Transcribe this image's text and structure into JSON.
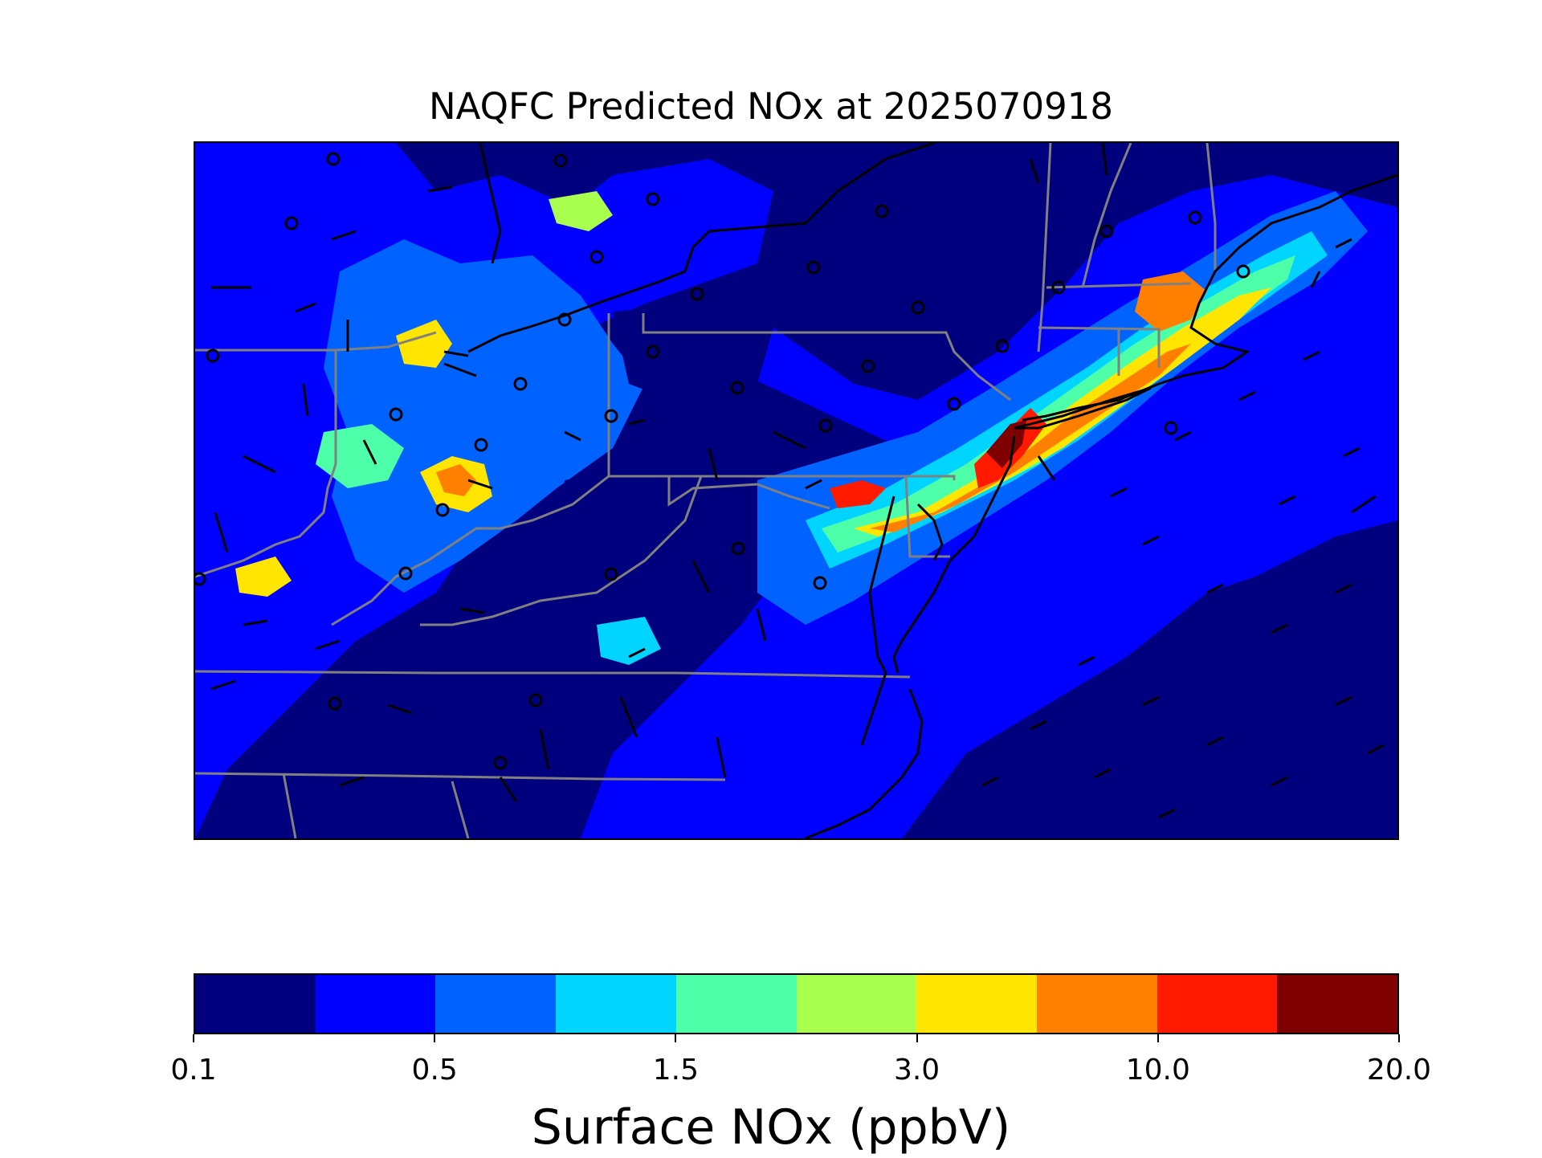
{
  "title": "NAQFC Predicted NOx at 2025070918",
  "colorbar": {
    "label": "Surface NOx (ppbV)",
    "ticks": [
      "0.1",
      "0.5",
      "1.5",
      "3.0",
      "10.0",
      "20.0"
    ],
    "colors": [
      "#00007f",
      "#0000ff",
      "#0063ff",
      "#00d4ff",
      "#4effa9",
      "#a9ff4e",
      "#ffe500",
      "#ff7f00",
      "#ff1a00",
      "#7f0000"
    ]
  },
  "map": {
    "variable": "Surface NOx",
    "units": "ppbV",
    "background_level_color": "#00007f",
    "overlays": [
      "state-boundaries",
      "coastlines",
      "wind-barbs",
      "station-markers"
    ]
  }
}
